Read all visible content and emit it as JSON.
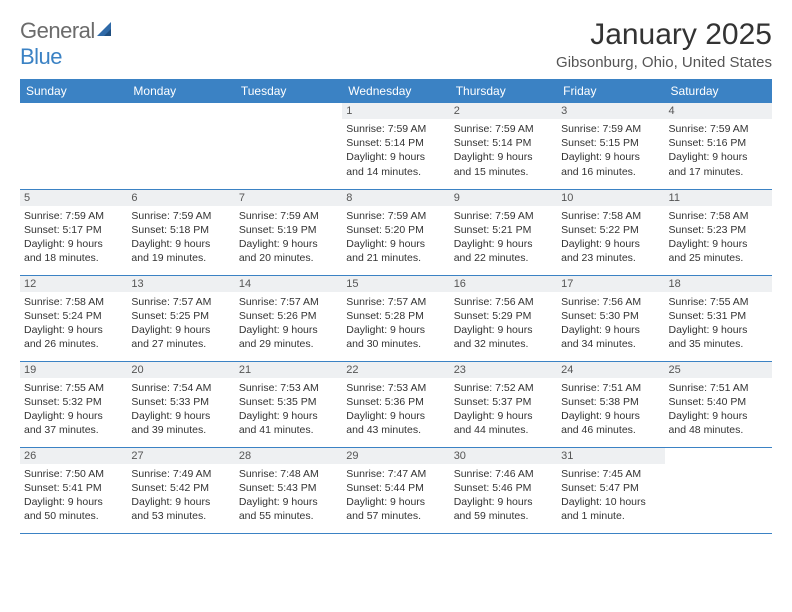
{
  "logo": {
    "word1": "General",
    "word2": "Blue"
  },
  "title": "January 2025",
  "location": "Gibsonburg, Ohio, United States",
  "colors": {
    "header_bg": "#3b82c4",
    "header_fg": "#ffffff",
    "daynum_bg": "#eef0f2",
    "border": "#3b82c4",
    "logo_gray": "#6b6b6b",
    "logo_blue": "#3b82c4"
  },
  "weekdays": [
    "Sunday",
    "Monday",
    "Tuesday",
    "Wednesday",
    "Thursday",
    "Friday",
    "Saturday"
  ],
  "weeks": [
    [
      null,
      null,
      null,
      {
        "num": "1",
        "sunrise": "Sunrise: 7:59 AM",
        "sunset": "Sunset: 5:14 PM",
        "day1": "Daylight: 9 hours",
        "day2": "and 14 minutes."
      },
      {
        "num": "2",
        "sunrise": "Sunrise: 7:59 AM",
        "sunset": "Sunset: 5:14 PM",
        "day1": "Daylight: 9 hours",
        "day2": "and 15 minutes."
      },
      {
        "num": "3",
        "sunrise": "Sunrise: 7:59 AM",
        "sunset": "Sunset: 5:15 PM",
        "day1": "Daylight: 9 hours",
        "day2": "and 16 minutes."
      },
      {
        "num": "4",
        "sunrise": "Sunrise: 7:59 AM",
        "sunset": "Sunset: 5:16 PM",
        "day1": "Daylight: 9 hours",
        "day2": "and 17 minutes."
      }
    ],
    [
      {
        "num": "5",
        "sunrise": "Sunrise: 7:59 AM",
        "sunset": "Sunset: 5:17 PM",
        "day1": "Daylight: 9 hours",
        "day2": "and 18 minutes."
      },
      {
        "num": "6",
        "sunrise": "Sunrise: 7:59 AM",
        "sunset": "Sunset: 5:18 PM",
        "day1": "Daylight: 9 hours",
        "day2": "and 19 minutes."
      },
      {
        "num": "7",
        "sunrise": "Sunrise: 7:59 AM",
        "sunset": "Sunset: 5:19 PM",
        "day1": "Daylight: 9 hours",
        "day2": "and 20 minutes."
      },
      {
        "num": "8",
        "sunrise": "Sunrise: 7:59 AM",
        "sunset": "Sunset: 5:20 PM",
        "day1": "Daylight: 9 hours",
        "day2": "and 21 minutes."
      },
      {
        "num": "9",
        "sunrise": "Sunrise: 7:59 AM",
        "sunset": "Sunset: 5:21 PM",
        "day1": "Daylight: 9 hours",
        "day2": "and 22 minutes."
      },
      {
        "num": "10",
        "sunrise": "Sunrise: 7:58 AM",
        "sunset": "Sunset: 5:22 PM",
        "day1": "Daylight: 9 hours",
        "day2": "and 23 minutes."
      },
      {
        "num": "11",
        "sunrise": "Sunrise: 7:58 AM",
        "sunset": "Sunset: 5:23 PM",
        "day1": "Daylight: 9 hours",
        "day2": "and 25 minutes."
      }
    ],
    [
      {
        "num": "12",
        "sunrise": "Sunrise: 7:58 AM",
        "sunset": "Sunset: 5:24 PM",
        "day1": "Daylight: 9 hours",
        "day2": "and 26 minutes."
      },
      {
        "num": "13",
        "sunrise": "Sunrise: 7:57 AM",
        "sunset": "Sunset: 5:25 PM",
        "day1": "Daylight: 9 hours",
        "day2": "and 27 minutes."
      },
      {
        "num": "14",
        "sunrise": "Sunrise: 7:57 AM",
        "sunset": "Sunset: 5:26 PM",
        "day1": "Daylight: 9 hours",
        "day2": "and 29 minutes."
      },
      {
        "num": "15",
        "sunrise": "Sunrise: 7:57 AM",
        "sunset": "Sunset: 5:28 PM",
        "day1": "Daylight: 9 hours",
        "day2": "and 30 minutes."
      },
      {
        "num": "16",
        "sunrise": "Sunrise: 7:56 AM",
        "sunset": "Sunset: 5:29 PM",
        "day1": "Daylight: 9 hours",
        "day2": "and 32 minutes."
      },
      {
        "num": "17",
        "sunrise": "Sunrise: 7:56 AM",
        "sunset": "Sunset: 5:30 PM",
        "day1": "Daylight: 9 hours",
        "day2": "and 34 minutes."
      },
      {
        "num": "18",
        "sunrise": "Sunrise: 7:55 AM",
        "sunset": "Sunset: 5:31 PM",
        "day1": "Daylight: 9 hours",
        "day2": "and 35 minutes."
      }
    ],
    [
      {
        "num": "19",
        "sunrise": "Sunrise: 7:55 AM",
        "sunset": "Sunset: 5:32 PM",
        "day1": "Daylight: 9 hours",
        "day2": "and 37 minutes."
      },
      {
        "num": "20",
        "sunrise": "Sunrise: 7:54 AM",
        "sunset": "Sunset: 5:33 PM",
        "day1": "Daylight: 9 hours",
        "day2": "and 39 minutes."
      },
      {
        "num": "21",
        "sunrise": "Sunrise: 7:53 AM",
        "sunset": "Sunset: 5:35 PM",
        "day1": "Daylight: 9 hours",
        "day2": "and 41 minutes."
      },
      {
        "num": "22",
        "sunrise": "Sunrise: 7:53 AM",
        "sunset": "Sunset: 5:36 PM",
        "day1": "Daylight: 9 hours",
        "day2": "and 43 minutes."
      },
      {
        "num": "23",
        "sunrise": "Sunrise: 7:52 AM",
        "sunset": "Sunset: 5:37 PM",
        "day1": "Daylight: 9 hours",
        "day2": "and 44 minutes."
      },
      {
        "num": "24",
        "sunrise": "Sunrise: 7:51 AM",
        "sunset": "Sunset: 5:38 PM",
        "day1": "Daylight: 9 hours",
        "day2": "and 46 minutes."
      },
      {
        "num": "25",
        "sunrise": "Sunrise: 7:51 AM",
        "sunset": "Sunset: 5:40 PM",
        "day1": "Daylight: 9 hours",
        "day2": "and 48 minutes."
      }
    ],
    [
      {
        "num": "26",
        "sunrise": "Sunrise: 7:50 AM",
        "sunset": "Sunset: 5:41 PM",
        "day1": "Daylight: 9 hours",
        "day2": "and 50 minutes."
      },
      {
        "num": "27",
        "sunrise": "Sunrise: 7:49 AM",
        "sunset": "Sunset: 5:42 PM",
        "day1": "Daylight: 9 hours",
        "day2": "and 53 minutes."
      },
      {
        "num": "28",
        "sunrise": "Sunrise: 7:48 AM",
        "sunset": "Sunset: 5:43 PM",
        "day1": "Daylight: 9 hours",
        "day2": "and 55 minutes."
      },
      {
        "num": "29",
        "sunrise": "Sunrise: 7:47 AM",
        "sunset": "Sunset: 5:44 PM",
        "day1": "Daylight: 9 hours",
        "day2": "and 57 minutes."
      },
      {
        "num": "30",
        "sunrise": "Sunrise: 7:46 AM",
        "sunset": "Sunset: 5:46 PM",
        "day1": "Daylight: 9 hours",
        "day2": "and 59 minutes."
      },
      {
        "num": "31",
        "sunrise": "Sunrise: 7:45 AM",
        "sunset": "Sunset: 5:47 PM",
        "day1": "Daylight: 10 hours",
        "day2": "and 1 minute."
      },
      null
    ]
  ]
}
